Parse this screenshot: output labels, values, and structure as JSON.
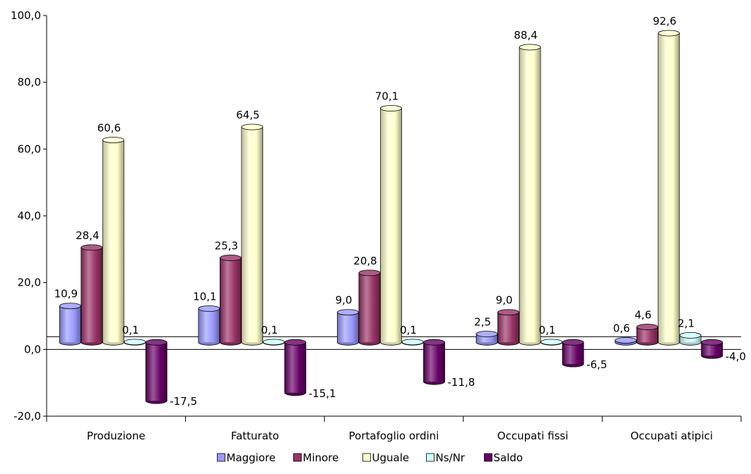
{
  "chart_data": {
    "type": "bar",
    "categories": [
      "Produzione",
      "Fatturato",
      "Portafoglio ordini",
      "Occupati fissi",
      "Occupati atipici"
    ],
    "series": [
      {
        "name": "Maggiore",
        "values": [
          10.9,
          10.1,
          9.0,
          2.5,
          0.6
        ],
        "labels": [
          "10,9",
          "10,1",
          "9,0",
          "2,5",
          "0,6"
        ]
      },
      {
        "name": "Minore",
        "values": [
          28.4,
          25.3,
          20.8,
          9.0,
          4.6
        ],
        "labels": [
          "28,4",
          "25,3",
          "20,8",
          "9,0",
          "4,6"
        ]
      },
      {
        "name": "Uguale",
        "values": [
          60.6,
          64.5,
          70.1,
          88.4,
          92.6
        ],
        "labels": [
          "60,6",
          "64,5",
          "70,1",
          "88,4",
          "92,6"
        ]
      },
      {
        "name": "Ns/Nr",
        "values": [
          0.1,
          0.1,
          0.1,
          0.1,
          2.1
        ],
        "labels": [
          "0,1",
          "0,1",
          "0,1",
          "0,1",
          "2,1"
        ]
      },
      {
        "name": "Saldo",
        "values": [
          -17.5,
          -15.1,
          -11.8,
          -6.5,
          -4.0
        ],
        "labels": [
          "-17,5",
          "-15,1",
          "-11,8",
          "-6,5",
          "-4,0"
        ]
      }
    ],
    "ylim": [
      -20,
      100
    ],
    "yticks": [
      -20,
      0,
      20,
      40,
      60,
      80,
      100
    ],
    "ytick_labels": [
      "-20,0",
      "0,0",
      "20,0",
      "40,0",
      "60,0",
      "80,0",
      "100,0"
    ],
    "legend_position": "bottom",
    "grid": false,
    "colors": {
      "Maggiore": "#9999ff",
      "Minore": "#993366",
      "Uguale": "#ffffcc",
      "Ns/Nr": "#ccffff",
      "Saldo": "#660066"
    }
  }
}
